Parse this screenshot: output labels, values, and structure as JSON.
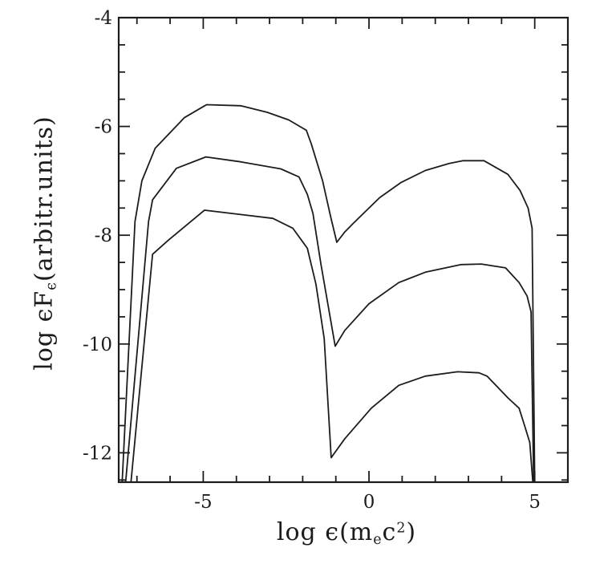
{
  "figure": {
    "background": "#ffffff",
    "ink": "#1c1c1c"
  },
  "axes": {
    "x": {
      "title_parts": {
        "pre": "log ϵ(m",
        "sub": "e",
        "mid": "c",
        "sup": "2",
        "post": ")"
      },
      "tick_labels": [
        {
          "value": -5,
          "label": "-5"
        },
        {
          "value": 0,
          "label": "0"
        },
        {
          "value": 5,
          "label": "5"
        }
      ]
    },
    "y": {
      "title_parts": {
        "pre": "log ϵF",
        "sub": "ϵ",
        "post": "(arbitr.units)"
      },
      "tick_labels": [
        {
          "value": -4,
          "label": "-4"
        },
        {
          "value": -6,
          "label": "-6"
        },
        {
          "value": -8,
          "label": "-8"
        },
        {
          "value": -10,
          "label": "-10"
        },
        {
          "value": -12,
          "label": "-12"
        }
      ]
    }
  },
  "chart_data": {
    "type": "line",
    "title": "",
    "xlabel": "log ϵ(m_e c^2)",
    "ylabel": "log ϵF_ϵ (arbitr.units)",
    "xlim": [
      -7.55,
      6.0
    ],
    "ylim": [
      -12.54,
      -4.0
    ],
    "x_minor_step": 1,
    "x_major_ticks": [
      -5,
      0,
      5
    ],
    "y_minor_step": 0.5,
    "y_major_ticks": [
      -12,
      -10,
      -8,
      -6,
      -4
    ],
    "grid": false,
    "legend": false,
    "description": "Three double-humped model spectra (synchrotron + Compton peaks), vertically offset, each rising steeply near log e = -7.3, peaking near log e = -5, dipping near log e = -1, peaking again near log e = 3 and cutting off vertically at log e = 5",
    "series": [
      {
        "name": "top",
        "points": [
          [
            -7.45,
            -12.6
          ],
          [
            -7.06,
            -7.75
          ],
          [
            -6.85,
            -7.0
          ],
          [
            -6.45,
            -6.4
          ],
          [
            -5.57,
            -5.84
          ],
          [
            -4.9,
            -5.6
          ],
          [
            -3.87,
            -5.62
          ],
          [
            -3.07,
            -5.74
          ],
          [
            -2.42,
            -5.88
          ],
          [
            -1.89,
            -6.07
          ],
          [
            -1.74,
            -6.32
          ],
          [
            -1.4,
            -7.0
          ],
          [
            -1.16,
            -7.65
          ],
          [
            -0.97,
            -8.13
          ],
          [
            -0.73,
            -7.94
          ],
          [
            -0.49,
            -7.79
          ],
          [
            0.32,
            -7.31
          ],
          [
            0.97,
            -7.03
          ],
          [
            1.7,
            -6.81
          ],
          [
            2.42,
            -6.68
          ],
          [
            2.84,
            -6.63
          ],
          [
            3.47,
            -6.63
          ],
          [
            4.19,
            -6.88
          ],
          [
            4.56,
            -7.18
          ],
          [
            4.8,
            -7.5
          ],
          [
            4.92,
            -7.87
          ],
          [
            5.0,
            -12.6
          ]
        ]
      },
      {
        "name": "middle",
        "points": [
          [
            -7.35,
            -12.6
          ],
          [
            -6.65,
            -7.75
          ],
          [
            -6.53,
            -7.35
          ],
          [
            -5.81,
            -6.77
          ],
          [
            -4.92,
            -6.56
          ],
          [
            -3.87,
            -6.65
          ],
          [
            -2.66,
            -6.78
          ],
          [
            -2.11,
            -6.93
          ],
          [
            -1.86,
            -7.25
          ],
          [
            -1.69,
            -7.6
          ],
          [
            -1.45,
            -8.53
          ],
          [
            -1.02,
            -10.04
          ],
          [
            -0.73,
            -9.75
          ],
          [
            0.0,
            -9.26
          ],
          [
            0.9,
            -8.87
          ],
          [
            1.7,
            -8.68
          ],
          [
            2.78,
            -8.54
          ],
          [
            3.39,
            -8.53
          ],
          [
            4.12,
            -8.6
          ],
          [
            4.53,
            -8.87
          ],
          [
            4.77,
            -9.12
          ],
          [
            4.89,
            -9.41
          ],
          [
            4.97,
            -12.6
          ]
        ]
      },
      {
        "name": "bottom",
        "points": [
          [
            -7.19,
            -12.6
          ],
          [
            -6.53,
            -8.35
          ],
          [
            -6.05,
            -8.09
          ],
          [
            -4.96,
            -7.54
          ],
          [
            -3.87,
            -7.62
          ],
          [
            -2.9,
            -7.69
          ],
          [
            -2.3,
            -7.87
          ],
          [
            -1.86,
            -8.24
          ],
          [
            -1.6,
            -8.9
          ],
          [
            -1.35,
            -9.9
          ],
          [
            -1.14,
            -12.09
          ],
          [
            -0.73,
            -11.74
          ],
          [
            0.07,
            -11.18
          ],
          [
            0.9,
            -10.76
          ],
          [
            1.7,
            -10.59
          ],
          [
            2.67,
            -10.51
          ],
          [
            3.32,
            -10.53
          ],
          [
            3.56,
            -10.59
          ],
          [
            4.19,
            -10.99
          ],
          [
            4.53,
            -11.18
          ],
          [
            4.68,
            -11.47
          ],
          [
            4.85,
            -11.81
          ],
          [
            4.95,
            -12.6
          ]
        ]
      }
    ]
  }
}
